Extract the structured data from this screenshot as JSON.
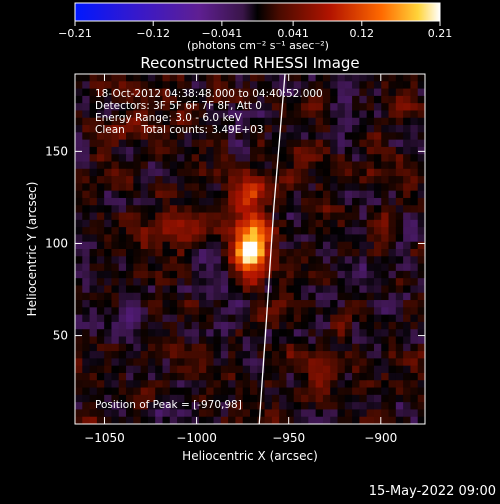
{
  "chart_data": {
    "type": "heatmap",
    "title": "Reconstructed RHESSI Image",
    "xlabel": "Heliocentric X (arcsec)",
    "ylabel": "Heliocentric Y (arcsec)",
    "xlim": [
      -1066,
      -876
    ],
    "ylim": [
      2,
      192
    ],
    "xticks": [
      -1050,
      -1000,
      -950,
      -900
    ],
    "yticks": [
      50,
      100,
      150
    ],
    "colorbar": {
      "ticks": [
        -0.21,
        -0.12,
        -0.041,
        0.041,
        0.12,
        0.21
      ],
      "tick_labels": [
        "−0.21",
        "−0.12",
        "−0.041",
        "0.041",
        "0.12",
        "0.21"
      ],
      "range": [
        -0.21,
        0.21
      ],
      "unit_label": "(photons cm⁻² s⁻¹ asec⁻²)"
    },
    "annotations": {
      "line1": "18-Oct-2012 04:38:48.000 to 04:40:52.000",
      "line2": "Detectors: 3F 5F 6F 7F 8F, Att 0",
      "line3": "Energy Range: 3.0 - 6.0 keV",
      "line4": "Clean     Total counts: 3.49E+03",
      "peak": "Position of Peak = [-970,98]"
    },
    "peak": {
      "x": -970,
      "y": 98,
      "value": 0.21
    },
    "sources": [
      {
        "x": -970,
        "y": 98,
        "sigma_x": 7,
        "sigma_y": 11,
        "amp": 0.2
      },
      {
        "x": -972,
        "y": 128,
        "sigma_x": 6,
        "sigma_y": 7,
        "amp": 0.09
      },
      {
        "x": -1012,
        "y": 108,
        "sigma_x": 14,
        "sigma_y": 8,
        "amp": 0.05
      },
      {
        "x": -935,
        "y": 35,
        "sigma_x": 12,
        "sigma_y": 9,
        "amp": 0.05
      },
      {
        "x": -1030,
        "y": 160,
        "sigma_x": 14,
        "sigma_y": 10,
        "amp": 0.03
      }
    ],
    "limb": [
      [
        -966,
        2
      ],
      [
        -962,
        60
      ],
      [
        -958,
        120
      ],
      [
        -952,
        192
      ]
    ],
    "grid": false
  },
  "footer": {
    "timestamp": "15-May-2022 09:00"
  }
}
